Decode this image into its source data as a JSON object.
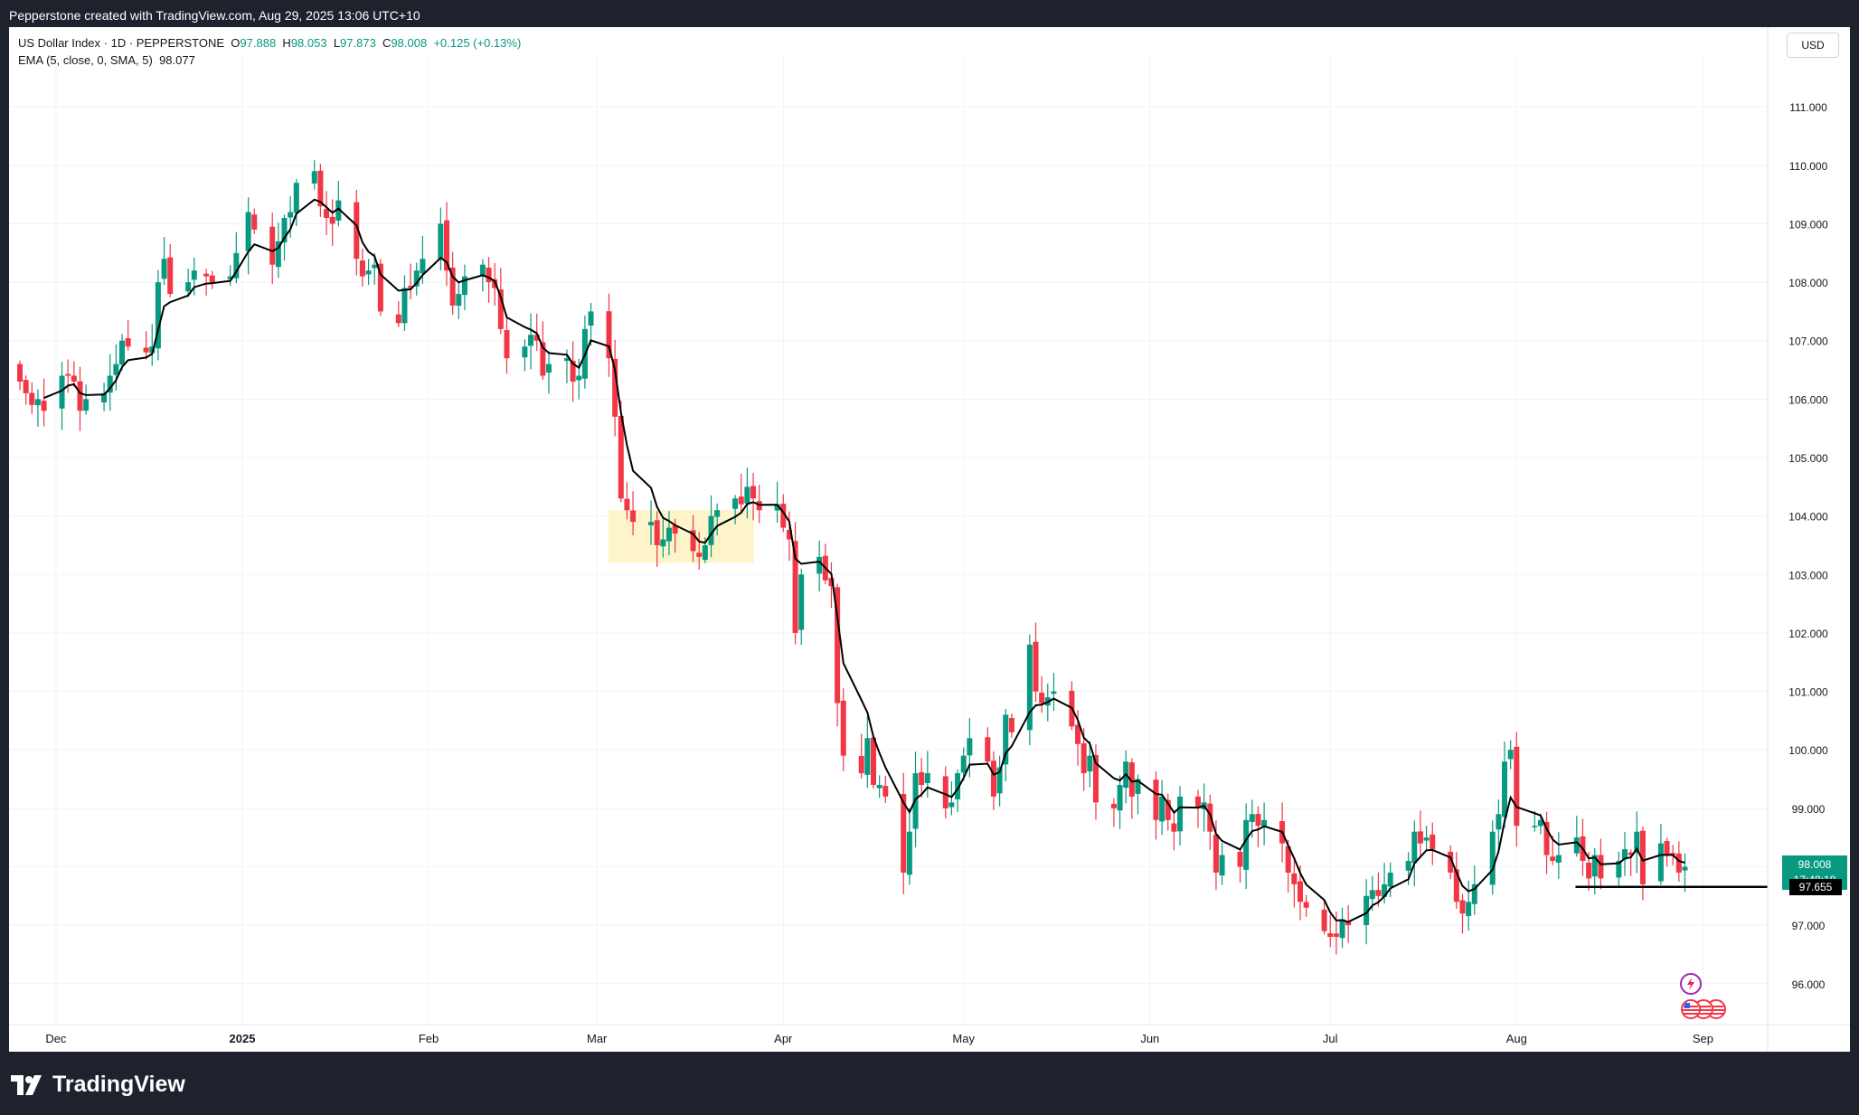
{
  "header": {
    "credit": "Pepperstone created with TradingView.com, Aug 29, 2025 13:06 UTC+10"
  },
  "legend": {
    "symbol": "US Dollar Index · 1D · PEPPERSTONE",
    "open_label": "O",
    "open": "97.888",
    "high_label": "H",
    "high": "98.053",
    "low_label": "L",
    "low": "97.873",
    "close_label": "C",
    "close": "98.008",
    "change": "+0.125 (+0.13%)",
    "ema_label": "EMA (5, close, 0, SMA, 5)",
    "ema_value": "98.077"
  },
  "currency": "USD",
  "price_badge": {
    "price": "98.008",
    "countdown": "17:48:18"
  },
  "level_badge": "97.655",
  "brand": "TradingView",
  "colors": {
    "up": "#089981",
    "down": "#f23645",
    "ema": "#000000",
    "highlight": "#fdf5c9",
    "background": "#ffffff"
  },
  "chart_data": {
    "type": "candlestick",
    "interval": "1D",
    "y_axis_ticks": [
      "111.000",
      "110.000",
      "109.000",
      "108.000",
      "107.000",
      "106.000",
      "105.000",
      "104.000",
      "103.000",
      "102.000",
      "101.000",
      "100.000",
      "99.000",
      "98.000",
      "97.000",
      "96.000"
    ],
    "ylim": [
      95.3,
      111.9
    ],
    "x_axis_labels": [
      {
        "label": "Dec",
        "date": "2024-12-01"
      },
      {
        "label": "2025",
        "date": "2025-01-01"
      },
      {
        "label": "Feb",
        "date": "2025-02-01"
      },
      {
        "label": "Mar",
        "date": "2025-03-01"
      },
      {
        "label": "Apr",
        "date": "2025-04-01"
      },
      {
        "label": "May",
        "date": "2025-05-01"
      },
      {
        "label": "Jun",
        "date": "2025-06-01"
      },
      {
        "label": "Jul",
        "date": "2025-07-01"
      },
      {
        "label": "Aug",
        "date": "2025-08-01"
      },
      {
        "label": "Sep",
        "date": "2025-09-01"
      }
    ],
    "grid": true,
    "close_series": [
      [
        "2024-11-25",
        106.3
      ],
      [
        "2024-11-26",
        106.1
      ],
      [
        "2024-11-27",
        105.9
      ],
      [
        "2024-11-28",
        106.0
      ],
      [
        "2024-11-29",
        105.8
      ],
      [
        "2024-12-02",
        106.4
      ],
      [
        "2024-12-03",
        106.4
      ],
      [
        "2024-12-04",
        106.3
      ],
      [
        "2024-12-05",
        105.8
      ],
      [
        "2024-12-06",
        106.0
      ],
      [
        "2024-12-09",
        106.1
      ],
      [
        "2024-12-10",
        106.4
      ],
      [
        "2024-12-11",
        106.6
      ],
      [
        "2024-12-12",
        107.0
      ],
      [
        "2024-12-13",
        106.9
      ],
      [
        "2024-12-16",
        106.8
      ],
      [
        "2024-12-17",
        106.9
      ],
      [
        "2024-12-18",
        108.0
      ],
      [
        "2024-12-19",
        108.4
      ],
      [
        "2024-12-20",
        107.8
      ],
      [
        "2024-12-23",
        108.0
      ],
      [
        "2024-12-24",
        108.2
      ],
      [
        "2024-12-26",
        108.1
      ],
      [
        "2024-12-27",
        108.0
      ],
      [
        "2024-12-30",
        108.1
      ],
      [
        "2024-12-31",
        108.5
      ],
      [
        "2025-01-02",
        109.2
      ],
      [
        "2025-01-03",
        108.9
      ],
      [
        "2025-01-06",
        108.3
      ],
      [
        "2025-01-07",
        108.7
      ],
      [
        "2025-01-08",
        109.1
      ],
      [
        "2025-01-09",
        109.2
      ],
      [
        "2025-01-10",
        109.7
      ],
      [
        "2025-01-13",
        109.9
      ],
      [
        "2025-01-14",
        109.3
      ],
      [
        "2025-01-15",
        109.1
      ],
      [
        "2025-01-16",
        109.0
      ],
      [
        "2025-01-17",
        109.4
      ],
      [
        "2025-01-20",
        108.4
      ],
      [
        "2025-01-21",
        108.1
      ],
      [
        "2025-01-22",
        108.2
      ],
      [
        "2025-01-23",
        108.3
      ],
      [
        "2025-01-24",
        107.5
      ],
      [
        "2025-01-27",
        107.3
      ],
      [
        "2025-01-28",
        107.9
      ],
      [
        "2025-01-29",
        107.9
      ],
      [
        "2025-01-30",
        108.2
      ],
      [
        "2025-01-31",
        108.4
      ],
      [
        "2025-02-03",
        109.0
      ],
      [
        "2025-02-04",
        108.2
      ],
      [
        "2025-02-05",
        107.6
      ],
      [
        "2025-02-06",
        107.8
      ],
      [
        "2025-02-07",
        108.1
      ],
      [
        "2025-02-10",
        108.3
      ],
      [
        "2025-02-11",
        108.0
      ],
      [
        "2025-02-12",
        107.9
      ],
      [
        "2025-02-13",
        107.2
      ],
      [
        "2025-02-14",
        106.7
      ],
      [
        "2025-02-17",
        106.9
      ],
      [
        "2025-02-18",
        107.1
      ],
      [
        "2025-02-19",
        107.0
      ],
      [
        "2025-02-20",
        106.4
      ],
      [
        "2025-02-21",
        106.6
      ],
      [
        "2025-02-24",
        106.7
      ],
      [
        "2025-02-25",
        106.3
      ],
      [
        "2025-02-26",
        106.4
      ],
      [
        "2025-02-27",
        107.2
      ],
      [
        "2025-02-28",
        107.5
      ],
      [
        "2025-03-03",
        106.7
      ],
      [
        "2025-03-04",
        105.7
      ],
      [
        "2025-03-05",
        104.3
      ],
      [
        "2025-03-06",
        104.1
      ],
      [
        "2025-03-07",
        103.9
      ],
      [
        "2025-03-10",
        103.9
      ],
      [
        "2025-03-11",
        103.5
      ],
      [
        "2025-03-12",
        103.6
      ],
      [
        "2025-03-13",
        103.8
      ],
      [
        "2025-03-14",
        103.7
      ],
      [
        "2025-03-17",
        103.4
      ],
      [
        "2025-03-18",
        103.3
      ],
      [
        "2025-03-19",
        103.5
      ],
      [
        "2025-03-20",
        104.0
      ],
      [
        "2025-03-21",
        104.1
      ],
      [
        "2025-03-24",
        104.3
      ],
      [
        "2025-03-25",
        104.2
      ],
      [
        "2025-03-26",
        104.5
      ],
      [
        "2025-03-27",
        104.3
      ],
      [
        "2025-03-28",
        104.1
      ],
      [
        "2025-03-31",
        104.2
      ],
      [
        "2025-04-01",
        103.8
      ],
      [
        "2025-04-02",
        103.6
      ],
      [
        "2025-04-03",
        102.0
      ],
      [
        "2025-04-04",
        103.0
      ],
      [
        "2025-04-07",
        103.3
      ],
      [
        "2025-04-08",
        102.9
      ],
      [
        "2025-04-09",
        102.8
      ],
      [
        "2025-04-10",
        100.8
      ],
      [
        "2025-04-11",
        99.9
      ],
      [
        "2025-04-14",
        99.6
      ],
      [
        "2025-04-15",
        100.2
      ],
      [
        "2025-04-16",
        99.4
      ],
      [
        "2025-04-17",
        99.4
      ],
      [
        "2025-04-18",
        99.2
      ],
      [
        "2025-04-21",
        97.9
      ],
      [
        "2025-04-22",
        98.6
      ],
      [
        "2025-04-23",
        99.6
      ],
      [
        "2025-04-24",
        99.4
      ],
      [
        "2025-04-25",
        99.6
      ],
      [
        "2025-04-28",
        99.0
      ],
      [
        "2025-04-29",
        99.1
      ],
      [
        "2025-04-30",
        99.6
      ],
      [
        "2025-05-01",
        99.9
      ],
      [
        "2025-05-02",
        100.2
      ],
      [
        "2025-05-05",
        99.8
      ],
      [
        "2025-05-06",
        99.2
      ],
      [
        "2025-05-07",
        99.7
      ],
      [
        "2025-05-08",
        100.6
      ],
      [
        "2025-05-09",
        100.3
      ],
      [
        "2025-05-12",
        101.8
      ],
      [
        "2025-05-13",
        101.0
      ],
      [
        "2025-05-14",
        100.8
      ],
      [
        "2025-05-15",
        100.9
      ],
      [
        "2025-05-16",
        101.0
      ],
      [
        "2025-05-19",
        100.4
      ],
      [
        "2025-05-20",
        100.1
      ],
      [
        "2025-05-21",
        99.6
      ],
      [
        "2025-05-22",
        99.9
      ],
      [
        "2025-05-23",
        99.1
      ],
      [
        "2025-05-26",
        99.0
      ],
      [
        "2025-05-27",
        99.4
      ],
      [
        "2025-05-28",
        99.8
      ],
      [
        "2025-05-29",
        99.2
      ],
      [
        "2025-05-30",
        99.5
      ],
      [
        "2025-06-02",
        98.8
      ],
      [
        "2025-06-03",
        99.2
      ],
      [
        "2025-06-04",
        98.8
      ],
      [
        "2025-06-05",
        98.6
      ],
      [
        "2025-06-06",
        99.2
      ],
      [
        "2025-06-09",
        99.0
      ],
      [
        "2025-06-10",
        99.1
      ],
      [
        "2025-06-11",
        98.6
      ],
      [
        "2025-06-12",
        97.9
      ],
      [
        "2025-06-13",
        98.2
      ],
      [
        "2025-06-16",
        98.0
      ],
      [
        "2025-06-17",
        98.8
      ],
      [
        "2025-06-18",
        98.9
      ],
      [
        "2025-06-19",
        98.7
      ],
      [
        "2025-06-20",
        98.8
      ],
      [
        "2025-06-23",
        98.4
      ],
      [
        "2025-06-24",
        97.9
      ],
      [
        "2025-06-25",
        97.7
      ],
      [
        "2025-06-26",
        97.4
      ],
      [
        "2025-06-27",
        97.3
      ],
      [
        "2025-06-30",
        96.9
      ],
      [
        "2025-07-01",
        96.8
      ],
      [
        "2025-07-02",
        96.8
      ],
      [
        "2025-07-03",
        97.1
      ],
      [
        "2025-07-04",
        97.0
      ],
      [
        "2025-07-07",
        97.5
      ],
      [
        "2025-07-08",
        97.6
      ],
      [
        "2025-07-09",
        97.5
      ],
      [
        "2025-07-10",
        97.7
      ],
      [
        "2025-07-11",
        97.9
      ],
      [
        "2025-07-14",
        98.1
      ],
      [
        "2025-07-15",
        98.6
      ],
      [
        "2025-07-16",
        98.4
      ],
      [
        "2025-07-17",
        98.5
      ],
      [
        "2025-07-18",
        98.3
      ],
      [
        "2025-07-21",
        97.9
      ],
      [
        "2025-07-22",
        97.4
      ],
      [
        "2025-07-23",
        97.2
      ],
      [
        "2025-07-24",
        97.4
      ],
      [
        "2025-07-25",
        97.7
      ],
      [
        "2025-07-28",
        98.6
      ],
      [
        "2025-07-29",
        98.9
      ],
      [
        "2025-07-30",
        99.8
      ],
      [
        "2025-07-31",
        100.0
      ],
      [
        "2025-08-01",
        98.7
      ],
      [
        "2025-08-04",
        98.7
      ],
      [
        "2025-08-05",
        98.8
      ],
      [
        "2025-08-06",
        98.2
      ],
      [
        "2025-08-07",
        98.1
      ],
      [
        "2025-08-08",
        98.2
      ],
      [
        "2025-08-11",
        98.5
      ],
      [
        "2025-08-12",
        98.1
      ],
      [
        "2025-08-13",
        97.8
      ],
      [
        "2025-08-14",
        98.2
      ],
      [
        "2025-08-15",
        97.8
      ],
      [
        "2025-08-18",
        98.1
      ],
      [
        "2025-08-19",
        98.3
      ],
      [
        "2025-08-20",
        98.2
      ],
      [
        "2025-08-21",
        98.6
      ],
      [
        "2025-08-22",
        97.7
      ],
      [
        "2025-08-25",
        98.4
      ],
      [
        "2025-08-26",
        98.2
      ],
      [
        "2025-08-27",
        98.2
      ],
      [
        "2025-08-28",
        97.9
      ],
      [
        "2025-08-29",
        98.0
      ]
    ],
    "ema_period": 5,
    "horizontal_level": 97.655,
    "highlight_zone": {
      "from": "2025-03-05",
      "to": "2025-03-25",
      "y_low": 103.2,
      "y_high": 104.1
    }
  }
}
